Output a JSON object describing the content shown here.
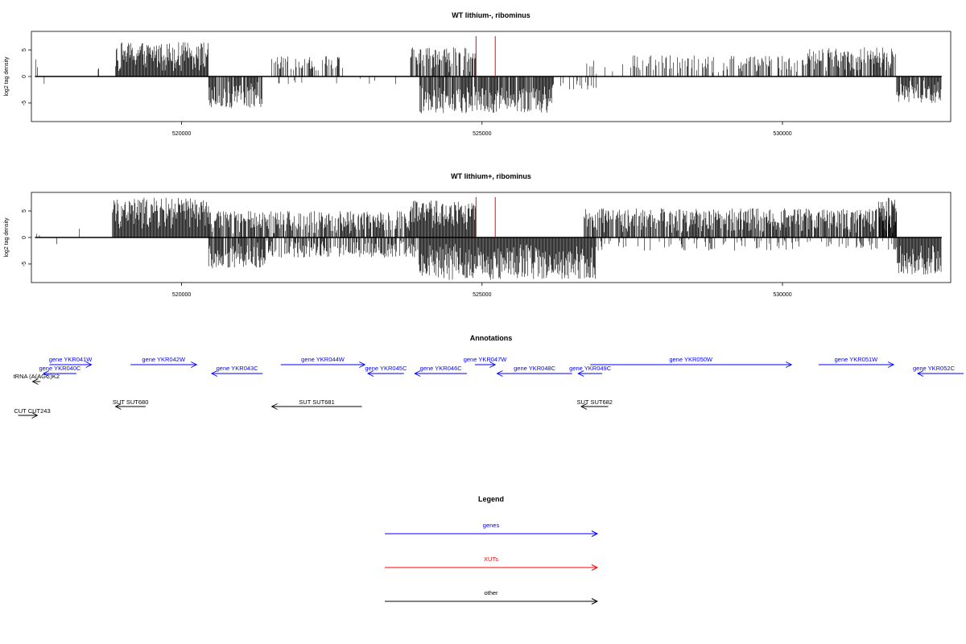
{
  "colors": {
    "gene": "#0000ff",
    "xut": "#ff0000",
    "other": "#000000"
  },
  "chart_data": [
    {
      "type": "bar",
      "title": "WT lithium-, ribominus",
      "ylabel": "log2 tag density",
      "xlim": [
        517500,
        532800
      ],
      "ylim": [
        -8.5,
        8.5
      ],
      "x_ticks": [
        520000,
        525000,
        530000
      ],
      "x_tick_labels": [
        "520000",
        "525000",
        "530000"
      ],
      "y_ticks": [
        -5,
        0,
        5
      ],
      "y_tick_labels": [
        "-5",
        "0",
        "5"
      ],
      "grid": false,
      "legend": "none",
      "series": [
        {
          "strand": "plus",
          "segments": [
            {
              "x": [
                517560,
                517610
              ],
              "y_max": 3.8,
              "density": 0.3
            },
            {
              "x": [
                518000,
                518800
              ],
              "y_max": 1.8,
              "density": 0.03
            },
            {
              "x": [
                518900,
                520450
              ],
              "y_max": 6.5,
              "density": 1.0
            },
            {
              "x": [
                521500,
                522700
              ],
              "y_max": 3.8,
              "density": 0.5
            },
            {
              "x": [
                523800,
                524900
              ],
              "y_max": 5.5,
              "density": 0.7
            },
            {
              "x": [
                526700,
                527500
              ],
              "y_max": 3.0,
              "density": 0.15
            },
            {
              "x": [
                527500,
                530400
              ],
              "y_max": 4.0,
              "density": 0.35
            },
            {
              "x": [
                530400,
                531900
              ],
              "y_max": 5.5,
              "density": 0.7
            }
          ]
        },
        {
          "strand": "minus",
          "segments": [
            {
              "x": [
                517680,
                517720
              ],
              "y_max": -2.8,
              "density": 0.3
            },
            {
              "x": [
                520450,
                521350
              ],
              "y_max": -6.0,
              "density": 0.85
            },
            {
              "x": [
                521400,
                523600
              ],
              "y_max": -1.5,
              "density": 0.04
            },
            {
              "x": [
                523950,
                526200
              ],
              "y_max": -7.0,
              "density": 0.85
            },
            {
              "x": [
                526200,
                526900
              ],
              "y_max": -2.5,
              "density": 0.25
            },
            {
              "x": [
                531900,
                532650
              ],
              "y_max": -5.0,
              "density": 0.85
            }
          ]
        }
      ],
      "markers": [
        {
          "x": 524900,
          "color": "#ff0000",
          "y_top": 7.6
        },
        {
          "x": 525220,
          "color": "#ff0000",
          "y_top": 7.6
        }
      ]
    },
    {
      "type": "bar",
      "title": "WT lithium+, ribominus",
      "ylabel": "log2 tag density",
      "xlim": [
        517500,
        532800
      ],
      "ylim": [
        -8.5,
        8.5
      ],
      "x_ticks": [
        520000,
        525000,
        530000
      ],
      "x_tick_labels": [
        "520000",
        "525000",
        "530000"
      ],
      "y_ticks": [
        -5,
        0,
        5
      ],
      "y_tick_labels": [
        "-5",
        "0",
        "5"
      ],
      "grid": false,
      "legend": "none",
      "series": [
        {
          "strand": "plus",
          "segments": [
            {
              "x": [
                517580,
                517650
              ],
              "y_max": 1.8,
              "density": 0.3
            },
            {
              "x": [
                518300,
                518500
              ],
              "y_max": 2.0,
              "density": 0.2
            },
            {
              "x": [
                518850,
                520450
              ],
              "y_max": 7.5,
              "density": 1.0
            },
            {
              "x": [
                520450,
                523800
              ],
              "y_max": 5.0,
              "density": 0.75
            },
            {
              "x": [
                523800,
                524900
              ],
              "y_max": 7.0,
              "density": 1.0
            },
            {
              "x": [
                526700,
                531900
              ],
              "y_max": 5.5,
              "density": 0.85
            },
            {
              "x": [
                531600,
                531900
              ],
              "y_max": 7.5,
              "density": 0.9
            }
          ]
        },
        {
          "strand": "minus",
          "segments": [
            {
              "x": [
                517680,
                517720
              ],
              "y_max": -3.5,
              "density": 0.3
            },
            {
              "x": [
                517900,
                517950
              ],
              "y_max": -1.5,
              "density": 0.3
            },
            {
              "x": [
                520450,
                521400
              ],
              "y_max": -6.0,
              "density": 0.9
            },
            {
              "x": [
                521400,
                523950
              ],
              "y_max": -3.8,
              "density": 0.6
            },
            {
              "x": [
                523950,
                526900
              ],
              "y_max": -8.0,
              "density": 1.0
            },
            {
              "x": [
                526900,
                531900
              ],
              "y_max": -2.5,
              "density": 0.2
            },
            {
              "x": [
                531900,
                532650
              ],
              "y_max": -7.0,
              "density": 1.0
            }
          ]
        }
      ],
      "markers": [
        {
          "x": 524900,
          "color": "#ff0000",
          "y_top": 7.6
        },
        {
          "x": 525220,
          "color": "#ff0000",
          "y_top": 7.6
        }
      ]
    }
  ],
  "annotations": {
    "title": "Annotations",
    "features": [
      {
        "label": "gene YKR041W",
        "class": "gene",
        "start": 517800,
        "end": 518500,
        "strand": "+",
        "row": 0
      },
      {
        "label": "gene YKR042W",
        "class": "gene",
        "start": 519150,
        "end": 520250,
        "strand": "+",
        "row": 0
      },
      {
        "label": "gene YKR044W",
        "class": "gene",
        "start": 521650,
        "end": 523050,
        "strand": "+",
        "row": 0
      },
      {
        "label": "gene YKR047W",
        "class": "gene",
        "start": 524880,
        "end": 525220,
        "strand": "+",
        "row": 0
      },
      {
        "label": "gene YKR050W",
        "class": "gene",
        "start": 526800,
        "end": 530150,
        "strand": "+",
        "row": 0
      },
      {
        "label": "gene YKR051W",
        "class": "gene",
        "start": 530600,
        "end": 531850,
        "strand": "+",
        "row": 0
      },
      {
        "label": "gene YKR040C",
        "class": "gene",
        "start": 517700,
        "end": 518250,
        "strand": "-",
        "row": 1
      },
      {
        "label": "gene YKR043C",
        "class": "gene",
        "start": 520500,
        "end": 521350,
        "strand": "-",
        "row": 1
      },
      {
        "label": "gene YKR045C",
        "class": "gene",
        "start": 523100,
        "end": 523700,
        "strand": "-",
        "row": 1
      },
      {
        "label": "gene YKR046C",
        "class": "gene",
        "start": 523880,
        "end": 524750,
        "strand": "-",
        "row": 1
      },
      {
        "label": "gene YKR048C",
        "class": "gene",
        "start": 525250,
        "end": 526500,
        "strand": "-",
        "row": 1
      },
      {
        "label": "gene YKR049C",
        "class": "gene",
        "start": 526600,
        "end": 527000,
        "strand": "-",
        "row": 1
      },
      {
        "label": "gene YKR052C",
        "class": "gene",
        "start": 532250,
        "end": 533150,
        "strand": "-",
        "row": 1
      },
      {
        "label": "tRNA (A(AGC)K2",
        "class": "other",
        "start": 517520,
        "end": 517650,
        "strand": "-",
        "row": 2
      },
      {
        "label": "SUT SUT680",
        "class": "other",
        "start": 518900,
        "end": 519400,
        "strand": "-",
        "row": 3
      },
      {
        "label": "SUT SUT681",
        "class": "other",
        "start": 521500,
        "end": 523000,
        "strand": "-",
        "row": 3
      },
      {
        "label": "SUT SUT682",
        "class": "other",
        "start": 526650,
        "end": 527100,
        "strand": "-",
        "row": 3
      },
      {
        "label": "CUT CUT243",
        "class": "other",
        "start": 517280,
        "end": 517600,
        "strand": "+",
        "row": 4
      }
    ]
  },
  "legend": {
    "title": "Legend",
    "items": [
      {
        "label": "genes",
        "class": "gene"
      },
      {
        "label": "XUTs",
        "class": "xut"
      },
      {
        "label": "other",
        "class": "other"
      }
    ]
  }
}
